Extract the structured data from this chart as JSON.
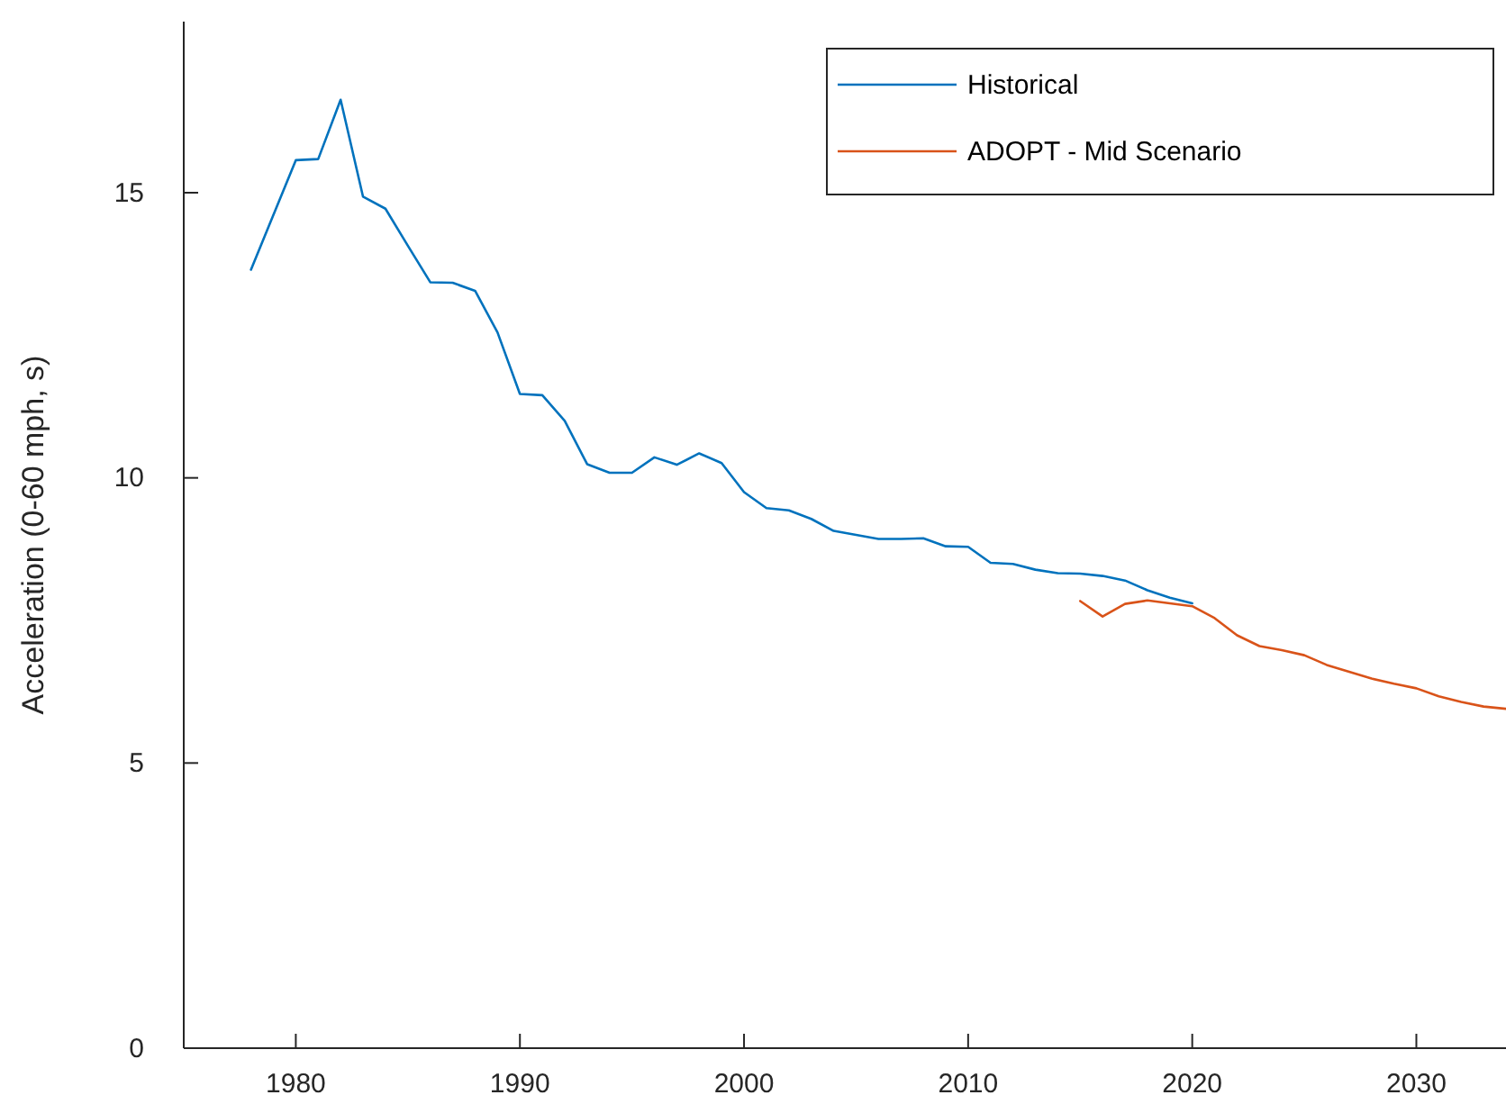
{
  "chart_data": {
    "type": "line",
    "ylabel": "Acceleration (0-60 mph, s)",
    "xlim": [
      1975,
      2034
    ],
    "xticks": [
      1980,
      1990,
      2000,
      2010,
      2020,
      2030
    ],
    "ylim": [
      0,
      18
    ],
    "yticks": [
      0,
      5,
      10,
      15
    ],
    "grid": false,
    "legend": "top right",
    "marker": "none",
    "line_style": "solid",
    "series": [
      {
        "name": "Historical",
        "color": "#0072bd",
        "x": [
          1978,
          1980,
          1981,
          1982,
          1983,
          1984,
          1985,
          1986,
          1987,
          1988,
          1989,
          1990,
          1991,
          1992,
          1993,
          1994,
          1995,
          1996,
          1997,
          1998,
          1999,
          2000,
          2001,
          2002,
          2003,
          2004,
          2005,
          2006,
          2007,
          2008,
          2009,
          2010,
          2011,
          2012,
          2013,
          2014,
          2015,
          2016,
          2017,
          2018,
          2019,
          2020
        ],
        "values": [
          13.65,
          15.57,
          15.59,
          16.63,
          14.93,
          14.72,
          14.07,
          13.43,
          13.42,
          13.28,
          12.55,
          11.47,
          11.45,
          11.0,
          10.24,
          10.09,
          10.09,
          10.36,
          10.23,
          10.43,
          10.26,
          9.75,
          9.47,
          9.43,
          9.28,
          9.07,
          9.0,
          8.93,
          8.93,
          8.94,
          8.8,
          8.79,
          8.51,
          8.49,
          8.39,
          8.33,
          8.32,
          8.28,
          8.2,
          8.03,
          7.9,
          7.8
        ]
      },
      {
        "name": "ADOPT - Mid Scenario",
        "color": "#d95319",
        "x": [
          2015,
          2016,
          2017,
          2018,
          2019,
          2020,
          2021,
          2022,
          2023,
          2024,
          2025,
          2026,
          2027,
          2028,
          2029,
          2030,
          2031,
          2032,
          2033,
          2034
        ],
        "values": [
          7.84,
          7.57,
          7.79,
          7.85,
          7.8,
          7.75,
          7.54,
          7.24,
          7.05,
          6.98,
          6.89,
          6.72,
          6.6,
          6.48,
          6.39,
          6.31,
          6.17,
          6.07,
          5.99,
          5.95
        ]
      }
    ]
  }
}
